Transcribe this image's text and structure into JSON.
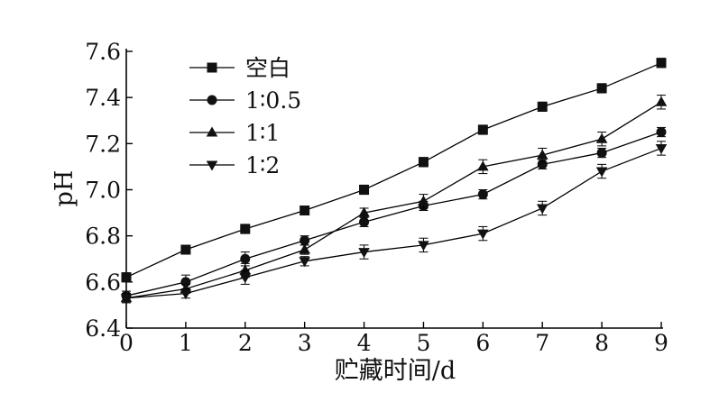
{
  "chart_data": {
    "type": "line",
    "xlabel": "贮藏时间/d",
    "ylabel": "pH",
    "x": [
      0,
      1,
      2,
      3,
      4,
      5,
      6,
      7,
      8,
      9
    ],
    "xlim": [
      0,
      9
    ],
    "ylim": [
      6.4,
      7.6
    ],
    "xticks": [
      "0",
      "1",
      "2",
      "3",
      "4",
      "5",
      "6",
      "7",
      "8",
      "9"
    ],
    "yticks": [
      "6.4",
      "6.6",
      "6.8",
      "7.0",
      "7.2",
      "7.4",
      "7.6"
    ],
    "grid": false,
    "legend_position": "top-left",
    "series": [
      {
        "name": "空白",
        "marker": "square",
        "values": [
          6.62,
          6.74,
          6.83,
          6.91,
          7.0,
          7.12,
          7.26,
          7.36,
          7.44,
          7.55
        ],
        "errors": [
          0.02,
          0.015,
          0.02,
          0.015,
          0.02,
          0.02,
          0.02,
          0.02,
          0.02,
          0.02
        ]
      },
      {
        "name": "1∶0.5",
        "marker": "circle",
        "values": [
          6.54,
          6.6,
          6.7,
          6.78,
          6.86,
          6.93,
          6.98,
          7.11,
          7.16,
          7.25
        ],
        "errors": [
          0.02,
          0.03,
          0.03,
          0.02,
          0.02,
          0.02,
          0.02,
          0.02,
          0.02,
          0.02
        ]
      },
      {
        "name": "1∶1",
        "marker": "triangle-up",
        "values": [
          6.53,
          6.57,
          6.65,
          6.74,
          6.9,
          6.95,
          7.1,
          7.15,
          7.22,
          7.38
        ],
        "errors": [
          0.02,
          0.02,
          0.03,
          0.02,
          0.02,
          0.03,
          0.03,
          0.03,
          0.03,
          0.03
        ]
      },
      {
        "name": "1∶2",
        "marker": "triangle-down",
        "values": [
          6.53,
          6.55,
          6.62,
          6.69,
          6.73,
          6.76,
          6.81,
          6.92,
          7.08,
          7.18
        ],
        "errors": [
          0.02,
          0.02,
          0.03,
          0.02,
          0.03,
          0.03,
          0.03,
          0.03,
          0.03,
          0.03
        ]
      }
    ]
  }
}
